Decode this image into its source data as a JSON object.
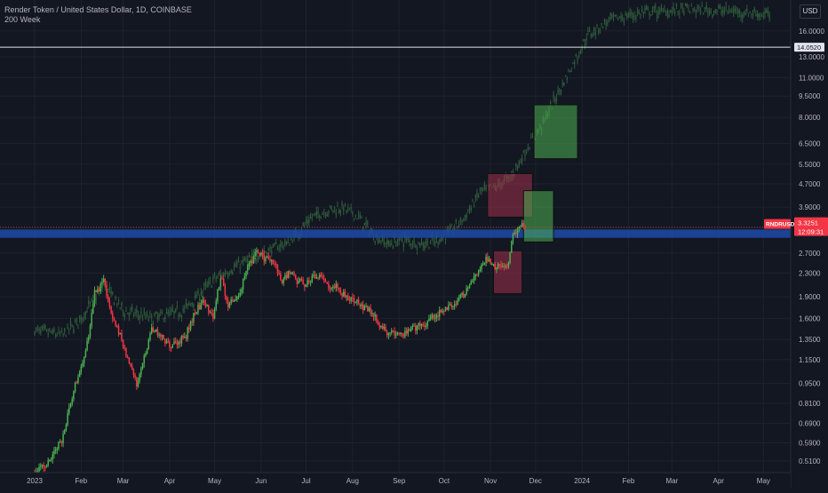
{
  "symbol_title": "Render Token / United States Dollar, 1D, COINBASE",
  "indicator_label": "200 Week",
  "currency_button": "USD",
  "price_tag_label": "RNDRUSD",
  "price_tag_value": "3.3251",
  "price_tag_countdown": "12:09:31",
  "level_label": "14.0520",
  "colors": {
    "background": "#131722",
    "up": "#4caf50",
    "down": "#f23645",
    "ghost": "#2e5a3a",
    "band": "#1e4aa8",
    "green_box": "#4caf50",
    "red_box": "#a0304a"
  },
  "chart_data": {
    "type": "candlestick",
    "y_scale": "log",
    "ylim": [
      0.465,
      20.5
    ],
    "y_ticks": [
      "16.0000",
      "13.0000",
      "11.0000",
      "9.5000",
      "8.0000",
      "6.5000",
      "5.5000",
      "4.7000",
      "3.9000",
      "3.3000",
      "2.7000",
      "2.3000",
      "1.9000",
      "1.6000",
      "1.3500",
      "1.1500",
      "0.9500",
      "0.8100",
      "0.6900",
      "0.5900",
      "0.5100"
    ],
    "x_ticks": [
      "2023",
      "Feb",
      "Mar",
      "Apr",
      "May",
      "Jun",
      "Jul",
      "Aug",
      "Sep",
      "Oct",
      "Nov",
      "Dec",
      "2024",
      "Feb",
      "Mar",
      "Apr",
      "May"
    ],
    "x_tick_dates": [
      "2023-01-01",
      "2023-02-01",
      "2023-03-01",
      "2023-04-01",
      "2023-05-01",
      "2023-06-01",
      "2023-07-01",
      "2023-08-01",
      "2023-09-01",
      "2023-10-01",
      "2023-11-01",
      "2023-12-01",
      "2024-01-01",
      "2024-02-01",
      "2024-03-01",
      "2024-04-01",
      "2024-05-01"
    ],
    "horizontal_line": 14.052,
    "current_price": 3.3251,
    "price_series_anchors": [
      [
        "2023-01-01",
        0.46
      ],
      [
        "2023-01-10",
        0.5
      ],
      [
        "2023-01-20",
        0.62
      ],
      [
        "2023-01-27",
        0.9
      ],
      [
        "2023-02-05",
        1.3
      ],
      [
        "2023-02-10",
        1.95
      ],
      [
        "2023-02-16",
        2.15
      ],
      [
        "2023-02-22",
        1.6
      ],
      [
        "2023-02-28",
        1.35
      ],
      [
        "2023-03-05",
        1.1
      ],
      [
        "2023-03-10",
        0.95
      ],
      [
        "2023-03-15",
        1.15
      ],
      [
        "2023-03-20",
        1.5
      ],
      [
        "2023-03-25",
        1.4
      ],
      [
        "2023-03-30",
        1.3
      ],
      [
        "2023-04-05",
        1.3
      ],
      [
        "2023-04-12",
        1.4
      ],
      [
        "2023-04-18",
        1.7
      ],
      [
        "2023-04-24",
        1.85
      ],
      [
        "2023-04-30",
        1.6
      ],
      [
        "2023-05-05",
        2.25
      ],
      [
        "2023-05-10",
        1.8
      ],
      [
        "2023-05-16",
        1.85
      ],
      [
        "2023-05-22",
        2.3
      ],
      [
        "2023-05-28",
        2.7
      ],
      [
        "2023-06-03",
        2.6
      ],
      [
        "2023-06-09",
        2.55
      ],
      [
        "2023-06-15",
        2.15
      ],
      [
        "2023-06-20",
        2.35
      ],
      [
        "2023-06-25",
        2.15
      ],
      [
        "2023-07-01",
        2.1
      ],
      [
        "2023-07-08",
        2.25
      ],
      [
        "2023-07-15",
        2.1
      ],
      [
        "2023-07-22",
        2.05
      ],
      [
        "2023-07-29",
        1.85
      ],
      [
        "2023-08-05",
        1.8
      ],
      [
        "2023-08-12",
        1.7
      ],
      [
        "2023-08-18",
        1.55
      ],
      [
        "2023-08-25",
        1.42
      ],
      [
        "2023-09-01",
        1.4
      ],
      [
        "2023-09-08",
        1.45
      ],
      [
        "2023-09-14",
        1.5
      ],
      [
        "2023-09-20",
        1.55
      ],
      [
        "2023-09-26",
        1.65
      ],
      [
        "2023-10-02",
        1.75
      ],
      [
        "2023-10-08",
        1.8
      ],
      [
        "2023-10-14",
        1.95
      ],
      [
        "2023-10-20",
        2.15
      ],
      [
        "2023-10-26",
        2.4
      ],
      [
        "2023-10-29",
        2.6
      ],
      [
        "2023-11-03",
        2.45
      ],
      [
        "2023-11-08",
        2.4
      ],
      [
        "2023-11-13",
        2.5
      ],
      [
        "2023-11-15",
        3.0
      ],
      [
        "2023-11-18",
        3.2
      ],
      [
        "2023-11-22",
        3.35
      ],
      [
        "2023-11-24",
        3.3251
      ]
    ],
    "ghost_overlay_anchors": [
      [
        "2023-01-01",
        1.45
      ],
      [
        "2023-01-20",
        1.4
      ],
      [
        "2023-02-01",
        1.6
      ],
      [
        "2023-02-16",
        2.1
      ],
      [
        "2023-03-01",
        1.7
      ],
      [
        "2023-03-20",
        1.6
      ],
      [
        "2023-04-10",
        1.7
      ],
      [
        "2023-05-01",
        2.2
      ],
      [
        "2023-05-20",
        2.5
      ],
      [
        "2023-06-05",
        2.75
      ],
      [
        "2023-06-20",
        2.95
      ],
      [
        "2023-07-05",
        3.6
      ],
      [
        "2023-07-15",
        3.8
      ],
      [
        "2023-07-25",
        3.9
      ],
      [
        "2023-08-05",
        3.6
      ],
      [
        "2023-08-15",
        3.1
      ],
      [
        "2023-08-25",
        2.9
      ],
      [
        "2023-09-05",
        3.0
      ],
      [
        "2023-09-15",
        2.9
      ],
      [
        "2023-09-25",
        2.95
      ],
      [
        "2023-10-05",
        3.2
      ],
      [
        "2023-10-15",
        3.6
      ],
      [
        "2023-10-25",
        4.4
      ],
      [
        "2023-11-05",
        4.6
      ],
      [
        "2023-11-15",
        5.0
      ],
      [
        "2023-11-25",
        6.2
      ],
      [
        "2023-12-05",
        7.5
      ],
      [
        "2023-12-15",
        9.5
      ],
      [
        "2023-12-25",
        12.0
      ],
      [
        "2024-01-05",
        15.5
      ],
      [
        "2024-01-20",
        17.5
      ],
      [
        "2024-02-10",
        18.5
      ],
      [
        "2024-03-10",
        19.0
      ],
      [
        "2024-04-10",
        18.8
      ],
      [
        "2024-05-05",
        18.2
      ]
    ],
    "band_zone": [
      3.05,
      3.26
    ],
    "boxes": [
      {
        "kind": "green",
        "from": "2023-11-30",
        "to": "2023-12-29",
        "low": 5.75,
        "high": 8.85
      },
      {
        "kind": "red",
        "from": "2023-10-30",
        "to": "2023-11-29",
        "low": 3.6,
        "high": 5.1
      },
      {
        "kind": "green",
        "from": "2023-11-23",
        "to": "2023-12-13",
        "low": 2.95,
        "high": 4.45
      },
      {
        "kind": "red",
        "from": "2023-11-03",
        "to": "2023-11-22",
        "low": 1.95,
        "high": 2.75
      }
    ]
  }
}
